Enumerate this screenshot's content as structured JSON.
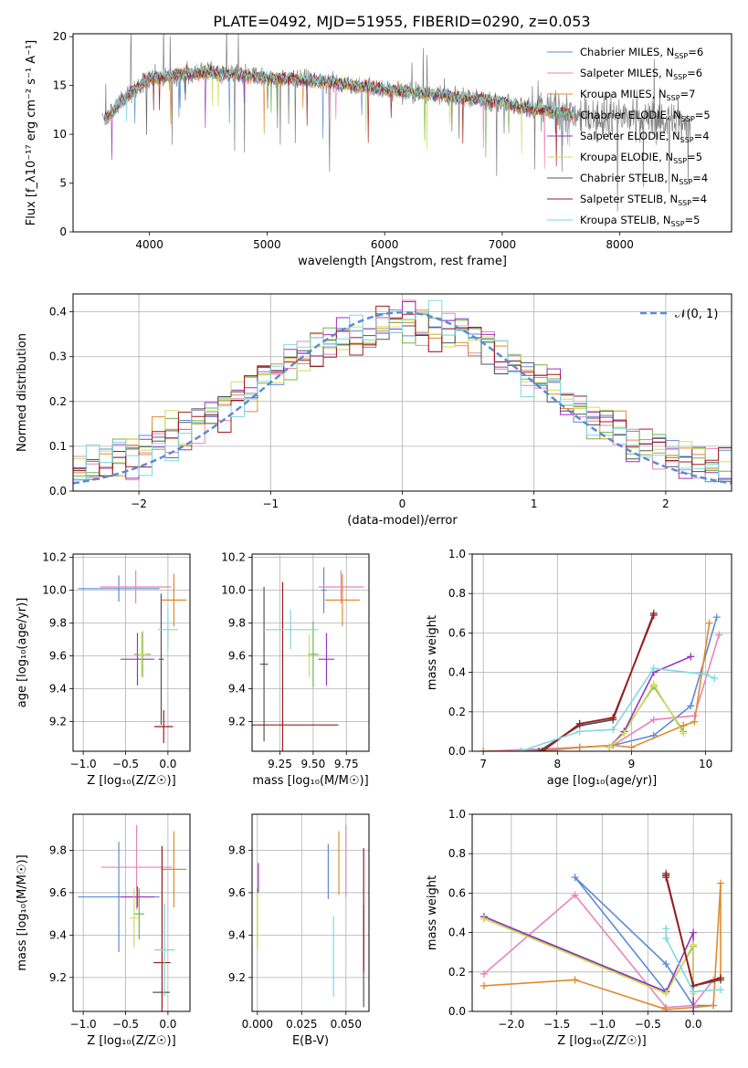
{
  "figure": {
    "title": "PLATE=0492, MJD=51955, FIBERID=0290, z=0.053"
  },
  "models": [
    {
      "name": "Chabrier MILES",
      "nssp": "6",
      "color": "#5b8bd6"
    },
    {
      "name": "Salpeter MILES",
      "nssp": "6",
      "color": "#e884b8"
    },
    {
      "name": "Kroupa MILES",
      "nssp": "7",
      "color": "#e08a2e"
    },
    {
      "name": "Chabrier ELODIE",
      "nssp": "5",
      "color": "#71b34a"
    },
    {
      "name": "Salpeter ELODIE",
      "nssp": "4",
      "color": "#9a34bd"
    },
    {
      "name": "Kroupa ELODIE",
      "nssp": "5",
      "color": "#cfdf5a"
    },
    {
      "name": "Chabrier STELIB",
      "nssp": "4",
      "color": "#555555"
    },
    {
      "name": "Salpeter STELIB",
      "nssp": "4",
      "color": "#a01a1a"
    },
    {
      "name": "Kroupa STELIB",
      "nssp": "5",
      "color": "#7fd8df"
    }
  ],
  "chart_data": [
    {
      "id": "spectrum",
      "type": "line",
      "xlabel": "wavelength [Angstrom, rest frame]",
      "ylabel": "Flux [f_λ10⁻¹⁷ erg cm⁻² s⁻¹ A⁻¹]",
      "xlim": [
        3350,
        8950
      ],
      "ylim": [
        0,
        20.3
      ],
      "xticks": [
        4000,
        5000,
        6000,
        7000,
        8000
      ],
      "xtick_labels": [
        "4000",
        "5000",
        "6000",
        "7000",
        "8000"
      ],
      "yticks": [
        0,
        5,
        10,
        15,
        20
      ],
      "ytick_labels": [
        "0",
        "5",
        "10",
        "15",
        "20"
      ],
      "grid": false,
      "legend": "right",
      "continuum": {
        "x": [
          3620,
          3800,
          4000,
          4200,
          4500,
          5000,
          5500,
          6000,
          6500,
          7000,
          7200,
          7400,
          7600
        ],
        "y": [
          11.5,
          13.8,
          15.8,
          16.0,
          16.4,
          15.8,
          15.4,
          14.6,
          14.0,
          13.3,
          12.7,
          12.4,
          12.0
        ]
      },
      "data_extent": [
        3600,
        8600
      ],
      "model_extent": [
        3620,
        7600
      ]
    },
    {
      "id": "residuals",
      "type": "histogram",
      "xlabel": "(data-model)/error",
      "ylabel": "Normed distribution",
      "xlim": [
        -2.5,
        2.5
      ],
      "ylim": [
        0,
        0.44
      ],
      "xticks": [
        -2,
        -1,
        0,
        1,
        2
      ],
      "xtick_labels": [
        "−2",
        "−1",
        "0",
        "1",
        "2"
      ],
      "yticks": [
        0,
        0.1,
        0.2,
        0.3,
        0.4
      ],
      "ytick_labels": [
        "0.0",
        "0.1",
        "0.2",
        "0.3",
        "0.4"
      ],
      "grid": true,
      "legend": "top-right",
      "reference": {
        "name": "𝒩(0, 1)",
        "color": "#5b8bd6",
        "style": "dashed",
        "mean": 0,
        "sigma": 1
      },
      "bins": {
        "start": -2.5,
        "width": 0.1,
        "count": 50
      }
    },
    {
      "id": "age-vs-Z",
      "type": "scatter",
      "xlabel": "Z [log₁₀(Z/Z☉)]",
      "ylabel": "age  [log₁₀(age/yr)]",
      "xlim": [
        -1.12,
        0.26
      ],
      "ylim": [
        9.02,
        10.22
      ],
      "xticks": [
        -1.0,
        -0.5,
        0.0
      ],
      "xtick_labels": [
        "−1.0",
        "−0.5",
        "0.0"
      ],
      "yticks": [
        9.2,
        9.4,
        9.6,
        9.8,
        10.0,
        10.2
      ],
      "ytick_labels": [
        "9.2",
        "9.4",
        "9.6",
        "9.8",
        "10.0",
        "10.2"
      ],
      "grid": true,
      "points": [
        {
          "model": 0,
          "x": -0.58,
          "xerr": 0.48,
          "y": 10.01,
          "yerr": 0.08
        },
        {
          "model": 1,
          "x": -0.38,
          "xerr": 0.42,
          "y": 10.02,
          "yerr": 0.1
        },
        {
          "model": 2,
          "x": 0.07,
          "xerr": 0.15,
          "y": 9.94,
          "yerr": 0.16
        },
        {
          "model": 3,
          "x": -0.3,
          "xerr": 0.1,
          "y": 9.61,
          "yerr": 0.14
        },
        {
          "model": 4,
          "x": -0.36,
          "xerr": 0.2,
          "y": 9.58,
          "yerr": 0.16
        },
        {
          "model": 5,
          "x": -0.31,
          "xerr": 0.05,
          "y": 9.61,
          "yerr": 0.13
        },
        {
          "model": 6,
          "x": -0.08,
          "xerr": 0.03,
          "y": 9.58,
          "yerr": 0.4
        },
        {
          "model": 7,
          "x": -0.05,
          "xerr": 0.11,
          "y": 9.17,
          "yerr": 0.1
        },
        {
          "model": 8,
          "x": 0.0,
          "xerr": 0.12,
          "y": 9.76,
          "yerr": 0.12
        }
      ]
    },
    {
      "id": "age-vs-mass",
      "type": "scatter",
      "xlabel": "mass [log₁₀(M/M☉)]",
      "ylabel": "",
      "xlim": [
        9.04,
        9.92
      ],
      "ylim": [
        9.02,
        10.22
      ],
      "xticks": [
        9.25,
        9.5,
        9.75
      ],
      "xtick_labels": [
        "9.25",
        "9.50",
        "9.75"
      ],
      "yticks": [
        9.2,
        9.4,
        9.6,
        9.8,
        10.0,
        10.2
      ],
      "ytick_labels": [
        "9.2",
        "9.4",
        "9.6",
        "9.8",
        "10.0",
        "10.2"
      ],
      "grid": true,
      "points": [
        {
          "model": 0,
          "x": 9.58,
          "xerr": 0.02,
          "y": 10.0,
          "yerr": 0.14
        },
        {
          "model": 1,
          "x": 9.71,
          "xerr": 0.17,
          "y": 10.02,
          "yerr": 0.1
        },
        {
          "model": 2,
          "x": 9.72,
          "xerr": 0.13,
          "y": 9.94,
          "yerr": 0.16
        },
        {
          "model": 3,
          "x": 9.5,
          "xerr": 0.04,
          "y": 9.61,
          "yerr": 0.2
        },
        {
          "model": 4,
          "x": 9.6,
          "xerr": 0.06,
          "y": 9.58,
          "yerr": 0.16
        },
        {
          "model": 5,
          "x": 9.47,
          "xerr": 0.02,
          "y": 9.6,
          "yerr": 0.13
        },
        {
          "model": 6,
          "x": 9.13,
          "xerr": 0.03,
          "y": 9.55,
          "yerr": 0.47
        },
        {
          "model": 7,
          "x": 9.27,
          "xerr": 0.42,
          "y": 9.18,
          "yerr": 0.87
        },
        {
          "model": 8,
          "x": 9.33,
          "xerr": 0.21,
          "y": 9.76,
          "yerr": 0.12
        }
      ]
    },
    {
      "id": "massweight-vs-age",
      "type": "line",
      "xlabel": "age  [log₁₀(age/yr)]",
      "ylabel": "mass weight",
      "xlim": [
        6.85,
        10.35
      ],
      "ylim": [
        0,
        1.0
      ],
      "xticks": [
        7,
        8,
        9,
        10
      ],
      "xtick_labels": [
        "7",
        "8",
        "9",
        "10"
      ],
      "yticks": [
        0,
        0.2,
        0.4,
        0.6,
        0.8,
        1.0
      ],
      "ytick_labels": [
        "0.0",
        "0.2",
        "0.4",
        "0.6",
        "0.8",
        "1.0"
      ],
      "grid": true,
      "series": [
        {
          "model": 0,
          "x": [
            7.5,
            8.3,
            8.75,
            9.3,
            9.8,
            10.15
          ],
          "y": [
            0.0,
            0.02,
            0.03,
            0.08,
            0.23,
            0.68
          ]
        },
        {
          "model": 1,
          "x": [
            7.0,
            8.3,
            8.75,
            9.3,
            9.85,
            10.18
          ],
          "y": [
            0.0,
            0.02,
            0.03,
            0.16,
            0.18,
            0.59
          ]
        },
        {
          "model": 2,
          "x": [
            7.0,
            7.8,
            8.3,
            8.75,
            9.0,
            9.7,
            9.85,
            10.05
          ],
          "y": [
            0.0,
            0.0,
            0.02,
            0.03,
            0.02,
            0.13,
            0.15,
            0.65
          ]
        },
        {
          "model": 3,
          "x": [
            8.7,
            8.9,
            9.3,
            9.7
          ],
          "y": [
            0.02,
            0.1,
            0.33,
            0.1
          ]
        },
        {
          "model": 4,
          "x": [
            8.7,
            8.9,
            9.3,
            9.8
          ],
          "y": [
            0.02,
            0.1,
            0.4,
            0.48
          ]
        },
        {
          "model": 5,
          "x": [
            8.7,
            8.9,
            9.3,
            9.7
          ],
          "y": [
            0.02,
            0.09,
            0.34,
            0.09
          ]
        },
        {
          "model": 6,
          "x": [
            7.75,
            8.3,
            8.75,
            9.3
          ],
          "y": [
            0.0,
            0.13,
            0.16,
            0.7
          ]
        },
        {
          "model": 7,
          "x": [
            7.8,
            8.3,
            8.75,
            9.3
          ],
          "y": [
            0.0,
            0.14,
            0.17,
            0.69
          ]
        },
        {
          "model": 8,
          "x": [
            7.5,
            8.3,
            8.75,
            9.3,
            10.0,
            10.12
          ],
          "y": [
            0.0,
            0.1,
            0.11,
            0.42,
            0.39,
            0.37
          ]
        }
      ]
    },
    {
      "id": "mass-vs-Z",
      "type": "scatter",
      "xlabel": "Z [log₁₀(Z/Z☉)]",
      "ylabel": "mass [log₁₀(M/M☉)]",
      "xlim": [
        -1.12,
        0.26
      ],
      "ylim": [
        9.04,
        9.97
      ],
      "xticks": [
        -1.0,
        -0.5,
        0.0
      ],
      "xtick_labels": [
        "−1.0",
        "−0.5",
        "0.0"
      ],
      "yticks": [
        9.2,
        9.4,
        9.6,
        9.8
      ],
      "ytick_labels": [
        "9.2",
        "9.4",
        "9.6",
        "9.8"
      ],
      "grid": true,
      "points": [
        {
          "model": 0,
          "x": -0.58,
          "xerr": 0.48,
          "y": 9.58,
          "yerr": 0.26
        },
        {
          "model": 1,
          "x": -0.37,
          "xerr": 0.42,
          "y": 9.72,
          "yerr": 0.2
        },
        {
          "model": 2,
          "x": 0.07,
          "xerr": 0.15,
          "y": 9.71,
          "yerr": 0.18
        },
        {
          "model": 3,
          "x": -0.34,
          "xerr": 0.06,
          "y": 9.5,
          "yerr": 0.12
        },
        {
          "model": 4,
          "x": -0.36,
          "xerr": 0.2,
          "y": 9.58,
          "yerr": 0.05
        },
        {
          "model": 5,
          "x": -0.4,
          "xerr": 0.05,
          "y": 9.48,
          "yerr": 0.14
        },
        {
          "model": 6,
          "x": -0.08,
          "xerr": 0.1,
          "y": 9.13,
          "yerr": 0.0
        },
        {
          "model": 7,
          "x": -0.07,
          "xerr": 0.1,
          "y": 9.27,
          "yerr": 0.55
        },
        {
          "model": 8,
          "x": -0.04,
          "xerr": 0.12,
          "y": 9.33,
          "yerr": 0.22
        }
      ]
    },
    {
      "id": "mass-vs-EBV",
      "type": "scatter",
      "xlabel": "E(B-V)",
      "ylabel": "",
      "xlim": [
        -0.003,
        0.063
      ],
      "ylim": [
        9.04,
        9.97
      ],
      "xticks": [
        0.0,
        0.025,
        0.05
      ],
      "xtick_labels": [
        "0.000",
        "0.025",
        "0.050"
      ],
      "yticks": [
        9.2,
        9.4,
        9.6,
        9.8
      ],
      "ytick_labels": [
        "9.2",
        "9.4",
        "9.6",
        "9.8"
      ],
      "grid": true,
      "points": [
        {
          "model": 0,
          "x": 0.04,
          "xerr": 0,
          "y": 9.7,
          "yerr": 0.13
        },
        {
          "model": 1,
          "x": 0.05,
          "xerr": 0,
          "y": 9.75,
          "yerr": 0.17
        },
        {
          "model": 2,
          "x": 0.046,
          "xerr": 0,
          "y": 9.74,
          "yerr": 0.15
        },
        {
          "model": 3,
          "x": 0.0,
          "xerr": 0,
          "y": 9.48,
          "yerr": 0.14
        },
        {
          "model": 4,
          "x": 0.0005,
          "xerr": 0,
          "y": 9.67,
          "yerr": 0.07
        },
        {
          "model": 5,
          "x": 0.0,
          "xerr": 0,
          "y": 9.47,
          "yerr": 0.13
        },
        {
          "model": 6,
          "x": 0.06,
          "xerr": 0,
          "y": 9.3,
          "yerr": 0.24
        },
        {
          "model": 7,
          "x": 0.06,
          "xerr": 0,
          "y": 9.52,
          "yerr": 0.29
        },
        {
          "model": 8,
          "x": 0.043,
          "xerr": 0,
          "y": 9.3,
          "yerr": 0.19
        }
      ]
    },
    {
      "id": "massweight-vs-Z",
      "type": "line",
      "xlabel": "Z [log₁₀(Z/Z☉)]",
      "ylabel": "mass weight",
      "xlim": [
        -2.43,
        0.42
      ],
      "ylim": [
        0,
        1.0
      ],
      "xticks": [
        -2.0,
        -1.5,
        -1.0,
        -0.5,
        0.0
      ],
      "xtick_labels": [
        "−2.0",
        "−1.5",
        "−1.0",
        "−0.5",
        "0.0"
      ],
      "yticks": [
        0,
        0.2,
        0.4,
        0.6,
        0.8,
        1.0
      ],
      "ytick_labels": [
        "0.0",
        "0.2",
        "0.4",
        "0.6",
        "0.8",
        "1.0"
      ],
      "grid": true,
      "series": [
        {
          "model": 0,
          "x": [
            -2.3,
            -0.3,
            -1.3,
            -0.3,
            0.0,
            0.22
          ],
          "y": [
            0.48,
            0.1,
            0.68,
            0.24,
            0.03,
            0.03
          ]
        },
        {
          "model": 1,
          "x": [
            -2.3,
            -1.3,
            -0.3,
            0.0,
            0.22
          ],
          "y": [
            0.19,
            0.59,
            0.02,
            0.03,
            0.16
          ]
        },
        {
          "model": 2,
          "x": [
            -2.3,
            -1.3,
            -0.3,
            0.0,
            0.22,
            0.3,
            0.3
          ],
          "y": [
            0.13,
            0.16,
            0.01,
            0.02,
            0.03,
            0.65,
            0.16
          ]
        },
        {
          "model": 3,
          "x": [
            -2.3,
            -0.3,
            0.0,
            0.0
          ],
          "y": [
            0.47,
            0.1,
            0.33,
            0.1
          ]
        },
        {
          "model": 4,
          "x": [
            -2.3,
            -0.3,
            0.0,
            0.0
          ],
          "y": [
            0.48,
            0.1,
            0.4,
            0.0
          ]
        },
        {
          "model": 5,
          "x": [
            -2.3,
            -0.3,
            0.0,
            0.0
          ],
          "y": [
            0.47,
            0.09,
            0.34,
            0.09
          ]
        },
        {
          "model": 6,
          "x": [
            -0.3,
            -0.3,
            0.0,
            0.3
          ],
          "y": [
            0.7,
            0.69,
            0.13,
            0.16
          ]
        },
        {
          "model": 7,
          "x": [
            -0.3,
            -0.3,
            0.0,
            0.3
          ],
          "y": [
            0.69,
            0.68,
            0.13,
            0.17
          ]
        },
        {
          "model": 8,
          "x": [
            -0.3,
            -0.3,
            0.0,
            0.3
          ],
          "y": [
            0.42,
            0.37,
            0.1,
            0.11
          ]
        }
      ]
    }
  ]
}
